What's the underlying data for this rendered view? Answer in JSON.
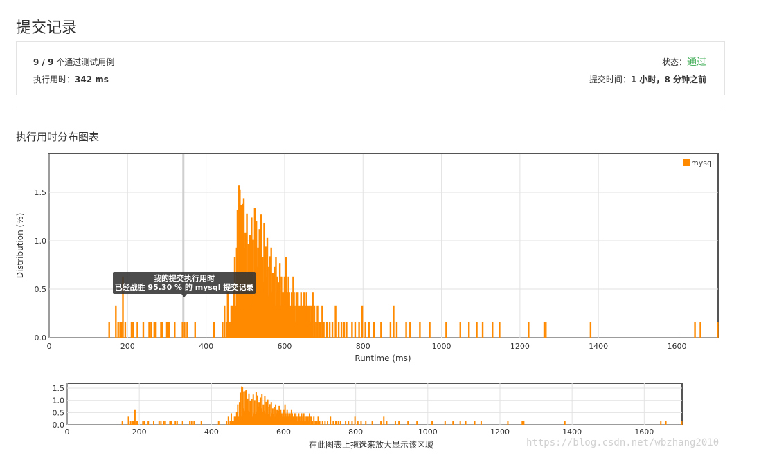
{
  "page": {
    "title": "提交记录",
    "summary": {
      "cases_count": "9 / 9",
      "cases_text": "个通过测试用例",
      "runtime_label": "执行用时：",
      "runtime_value": "342 ms",
      "status_label": "状态：",
      "status_value": "通过",
      "submitted_label": "提交时间：",
      "submitted_value": "1 小时，8 分钟之前"
    },
    "section_title": "执行用时分布图表",
    "watermark": "https://blog.csdn.net/wbzhang2010"
  },
  "colors": {
    "bar": "#ff8a00",
    "status_green": "#3cac53",
    "tooltip_bg": "#333333"
  },
  "chart_data": [
    {
      "type": "bar",
      "role": "main",
      "xlabel": "Runtime (ms)",
      "ylabel": "Distribution (%)",
      "xlim": [
        0,
        1705
      ],
      "ylim": [
        0,
        1.9
      ],
      "xticks": [
        0,
        200,
        400,
        600,
        800,
        1000,
        1200,
        1400,
        1600
      ],
      "yticks": [
        0.0,
        0.5,
        1.0,
        1.5
      ],
      "grid": true,
      "legend": {
        "position": "top-right",
        "entries": [
          "mysql"
        ]
      },
      "marker_x": 342,
      "tooltip": {
        "line1": "我的提交执行用时",
        "line2": "已经战胜 95.30 % 的 mysql 提交记录"
      },
      "series": [
        {
          "name": "mysql",
          "points": [
            [
              153,
              0.16
            ],
            [
              170,
              0.33
            ],
            [
              176,
              0.16
            ],
            [
              181,
              0.16
            ],
            [
              184,
              0.16
            ],
            [
              188,
              0.63
            ],
            [
              194,
              0.16
            ],
            [
              210,
              0.16
            ],
            [
              214,
              0.16
            ],
            [
              225,
              0.16
            ],
            [
              240,
              0.16
            ],
            [
              255,
              0.16
            ],
            [
              260,
              0.16
            ],
            [
              268,
              0.16
            ],
            [
              272,
              0.16
            ],
            [
              285,
              0.16
            ],
            [
              288,
              0.16
            ],
            [
              300,
              0.16
            ],
            [
              305,
              0.16
            ],
            [
              320,
              0.16
            ],
            [
              340,
              0.16
            ],
            [
              345,
              0.16
            ],
            [
              352,
              0.16
            ],
            [
              372,
              0.16
            ],
            [
              420,
              0.16
            ],
            [
              442,
              0.16
            ],
            [
              447,
              0.33
            ],
            [
              452,
              0.16
            ],
            [
              455,
              0.47
            ],
            [
              458,
              0.16
            ],
            [
              461,
              0.16
            ],
            [
              464,
              0.33
            ],
            [
              467,
              0.33
            ],
            [
              470,
              0.52
            ],
            [
              473,
              0.83
            ],
            [
              476,
              0.33
            ],
            [
              478,
              0.93
            ],
            [
              480,
              1.32
            ],
            [
              482,
              0.33
            ],
            [
              484,
              1.57
            ],
            [
              486,
              1.53
            ],
            [
              488,
              0.67
            ],
            [
              490,
              1.37
            ],
            [
              492,
              0.57
            ],
            [
              494,
              1.38
            ],
            [
              496,
              1.44
            ],
            [
              498,
              0.93
            ],
            [
              500,
              1.08
            ],
            [
              502,
              0.57
            ],
            [
              504,
              1.28
            ],
            [
              506,
              0.53
            ],
            [
              508,
              0.97
            ],
            [
              510,
              0.47
            ],
            [
              512,
              1.06
            ],
            [
              514,
              0.33
            ],
            [
              516,
              1.24
            ],
            [
              518,
              0.47
            ],
            [
              520,
              1.01
            ],
            [
              522,
              0.43
            ],
            [
              524,
              1.34
            ],
            [
              526,
              0.53
            ],
            [
              528,
              1.2
            ],
            [
              530,
              0.73
            ],
            [
              532,
              0.93
            ],
            [
              534,
              0.47
            ],
            [
              536,
              1.12
            ],
            [
              538,
              0.67
            ],
            [
              540,
              1.27
            ],
            [
              542,
              0.53
            ],
            [
              544,
              0.83
            ],
            [
              546,
              0.57
            ],
            [
              548,
              1.18
            ],
            [
              550,
              0.47
            ],
            [
              552,
              0.94
            ],
            [
              554,
              0.63
            ],
            [
              556,
              1.03
            ],
            [
              558,
              0.43
            ],
            [
              560,
              0.73
            ],
            [
              562,
              0.84
            ],
            [
              564,
              0.33
            ],
            [
              566,
              0.93
            ],
            [
              568,
              0.47
            ],
            [
              570,
              0.67
            ],
            [
              572,
              0.43
            ],
            [
              574,
              0.73
            ],
            [
              576,
              0.33
            ],
            [
              578,
              0.83
            ],
            [
              580,
              0.47
            ],
            [
              582,
              0.63
            ],
            [
              584,
              0.33
            ],
            [
              586,
              0.57
            ],
            [
              588,
              0.77
            ],
            [
              590,
              0.33
            ],
            [
              592,
              0.63
            ],
            [
              594,
              0.47
            ],
            [
              596,
              0.33
            ],
            [
              598,
              0.47
            ],
            [
              600,
              0.63
            ],
            [
              602,
              0.33
            ],
            [
              604,
              0.83
            ],
            [
              606,
              0.47
            ],
            [
              608,
              0.33
            ],
            [
              610,
              0.63
            ],
            [
              612,
              0.47
            ],
            [
              614,
              0.33
            ],
            [
              616,
              0.16
            ],
            [
              618,
              0.47
            ],
            [
              620,
              0.33
            ],
            [
              622,
              0.63
            ],
            [
              624,
              0.47
            ],
            [
              626,
              0.33
            ],
            [
              628,
              0.16
            ],
            [
              630,
              0.47
            ],
            [
              632,
              0.33
            ],
            [
              634,
              0.47
            ],
            [
              636,
              0.33
            ],
            [
              638,
              0.16
            ],
            [
              640,
              0.33
            ],
            [
              642,
              0.47
            ],
            [
              644,
              0.33
            ],
            [
              646,
              0.16
            ],
            [
              648,
              0.33
            ],
            [
              650,
              0.47
            ],
            [
              652,
              0.16
            ],
            [
              654,
              0.33
            ],
            [
              656,
              0.47
            ],
            [
              658,
              0.16
            ],
            [
              660,
              0.33
            ],
            [
              662,
              0.16
            ],
            [
              664,
              0.33
            ],
            [
              666,
              0.16
            ],
            [
              668,
              0.33
            ],
            [
              670,
              0.16
            ],
            [
              672,
              0.47
            ],
            [
              676,
              0.33
            ],
            [
              680,
              0.16
            ],
            [
              684,
              0.33
            ],
            [
              688,
              0.16
            ],
            [
              692,
              0.16
            ],
            [
              696,
              0.33
            ],
            [
              700,
              0.16
            ],
            [
              708,
              0.16
            ],
            [
              715,
              0.16
            ],
            [
              722,
              0.16
            ],
            [
              730,
              0.33
            ],
            [
              738,
              0.16
            ],
            [
              745,
              0.16
            ],
            [
              752,
              0.16
            ],
            [
              758,
              0.16
            ],
            [
              772,
              0.16
            ],
            [
              780,
              0.16
            ],
            [
              790,
              0.16
            ],
            [
              798,
              0.33
            ],
            [
              806,
              0.16
            ],
            [
              815,
              0.16
            ],
            [
              828,
              0.16
            ],
            [
              846,
              0.16
            ],
            [
              870,
              0.16
            ],
            [
              878,
              0.33
            ],
            [
              886,
              0.16
            ],
            [
              910,
              0.16
            ],
            [
              920,
              0.16
            ],
            [
              945,
              0.16
            ],
            [
              970,
              0.16
            ],
            [
              1012,
              0.16
            ],
            [
              1048,
              0.16
            ],
            [
              1070,
              0.16
            ],
            [
              1090,
              0.16
            ],
            [
              1105,
              0.16
            ],
            [
              1130,
              0.16
            ],
            [
              1148,
              0.16
            ],
            [
              1222,
              0.16
            ],
            [
              1262,
              0.16
            ],
            [
              1266,
              0.16
            ],
            [
              1380,
              0.16
            ],
            [
              1646,
              0.16
            ],
            [
              1660,
              0.16
            ],
            [
              1704,
              0.16
            ]
          ]
        }
      ]
    },
    {
      "type": "bar",
      "role": "navigator",
      "xlim": [
        0,
        1705
      ],
      "ylim": [
        0,
        1.7
      ],
      "xticks": [
        0,
        200,
        400,
        600,
        800,
        1000,
        1200,
        1400,
        1600
      ],
      "yticks": [
        0.0,
        0.5,
        1.0,
        1.5
      ],
      "caption": "在此图表上拖选来放大显示该区域"
    }
  ]
}
